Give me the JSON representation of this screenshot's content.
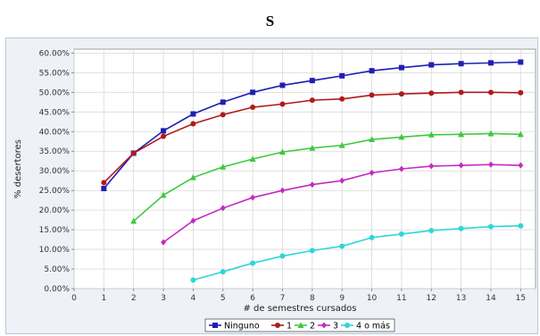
{
  "chart_data": {
    "type": "line",
    "title": "S",
    "xlabel": "# de semestres cursados",
    "ylabel": "% desertores",
    "xlim": [
      0,
      15
    ],
    "ylim": [
      0,
      60
    ],
    "x_ticks": [
      "0",
      "1",
      "2",
      "3",
      "4",
      "5",
      "6",
      "7",
      "8",
      "9",
      "10",
      "11",
      "12",
      "13",
      "14",
      "15"
    ],
    "y_ticks": [
      "0.00%",
      "5.00%",
      "10.00%",
      "15.00%",
      "20.00%",
      "25.00%",
      "30.00%",
      "35.00%",
      "40.00%",
      "45.00%",
      "50.00%",
      "55.00%",
      "60.00%"
    ],
    "grid": true,
    "legend_position": "bottom",
    "series": [
      {
        "name": "Ninguno",
        "color": "#1f1fb4",
        "marker": "square",
        "x": [
          1,
          2,
          3,
          4,
          5,
          6,
          7,
          8,
          9,
          10,
          11,
          12,
          13,
          14,
          15
        ],
        "y": [
          25.5,
          34.5,
          40.2,
          44.5,
          47.5,
          50.0,
          51.8,
          53.0,
          54.2,
          55.5,
          56.3,
          57.0,
          57.3,
          57.5,
          57.7
        ]
      },
      {
        "name": "1",
        "color": "#b01a1a",
        "marker": "circle",
        "x": [
          1,
          2,
          3,
          4,
          5,
          6,
          7,
          8,
          9,
          10,
          11,
          12,
          13,
          14,
          15
        ],
        "y": [
          27.0,
          34.5,
          38.8,
          42.0,
          44.3,
          46.2,
          47.0,
          48.0,
          48.3,
          49.3,
          49.6,
          49.8,
          50.0,
          50.0,
          49.9
        ]
      },
      {
        "name": "2",
        "color": "#3ec93e",
        "marker": "triangle",
        "x": [
          2,
          3,
          4,
          5,
          6,
          7,
          8,
          9,
          10,
          11,
          12,
          13,
          14,
          15
        ],
        "y": [
          17.2,
          23.8,
          28.3,
          31.0,
          33.0,
          34.8,
          35.8,
          36.5,
          38.0,
          38.6,
          39.2,
          39.3,
          39.5,
          39.3
        ]
      },
      {
        "name": "3",
        "color": "#c42ac4",
        "marker": "diamond",
        "x": [
          3,
          4,
          5,
          6,
          7,
          8,
          9,
          10,
          11,
          12,
          13,
          14,
          15
        ],
        "y": [
          11.8,
          17.3,
          20.5,
          23.2,
          25.0,
          26.5,
          27.5,
          29.5,
          30.5,
          31.2,
          31.4,
          31.6,
          31.4
        ]
      },
      {
        "name": "4 o más",
        "color": "#2fd6d6",
        "marker": "circle",
        "x": [
          4,
          5,
          6,
          7,
          8,
          9,
          10,
          11,
          12,
          13,
          14,
          15
        ],
        "y": [
          2.2,
          4.3,
          6.5,
          8.3,
          9.7,
          10.8,
          13.0,
          13.9,
          14.8,
          15.3,
          15.8,
          16.0
        ]
      }
    ]
  }
}
